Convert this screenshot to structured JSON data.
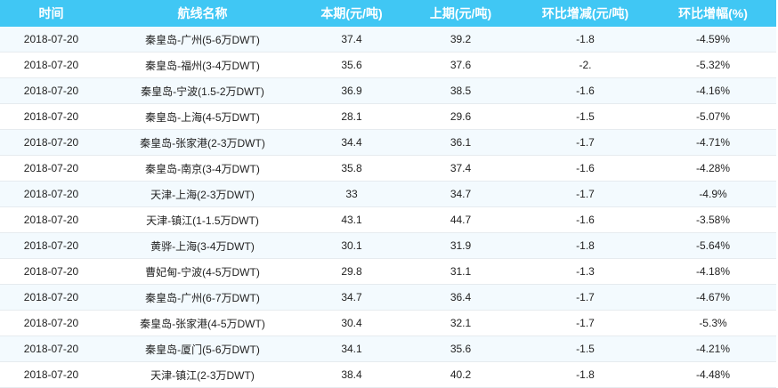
{
  "headers": [
    "时间",
    "航线名称",
    "本期(元/吨)",
    "上期(元/吨)",
    "环比增减(元/吨)",
    "环比增幅(%)"
  ],
  "colors": {
    "header_bg": "#40c7f4",
    "row_alt_bg": "#f3fafe"
  },
  "rows": [
    [
      "2018-07-20",
      "秦皇岛-广州(5-6万DWT)",
      "37.4",
      "39.2",
      "-1.8",
      "-4.59%"
    ],
    [
      "2018-07-20",
      "秦皇岛-福州(3-4万DWT)",
      "35.6",
      "37.6",
      "-2.",
      "-5.32%"
    ],
    [
      "2018-07-20",
      "秦皇岛-宁波(1.5-2万DWT)",
      "36.9",
      "38.5",
      "-1.6",
      "-4.16%"
    ],
    [
      "2018-07-20",
      "秦皇岛-上海(4-5万DWT)",
      "28.1",
      "29.6",
      "-1.5",
      "-5.07%"
    ],
    [
      "2018-07-20",
      "秦皇岛-张家港(2-3万DWT)",
      "34.4",
      "36.1",
      "-1.7",
      "-4.71%"
    ],
    [
      "2018-07-20",
      "秦皇岛-南京(3-4万DWT)",
      "35.8",
      "37.4",
      "-1.6",
      "-4.28%"
    ],
    [
      "2018-07-20",
      "天津-上海(2-3万DWT)",
      "33",
      "34.7",
      "-1.7",
      "-4.9%"
    ],
    [
      "2018-07-20",
      "天津-镇江(1-1.5万DWT)",
      "43.1",
      "44.7",
      "-1.6",
      "-3.58%"
    ],
    [
      "2018-07-20",
      "黄骅-上海(3-4万DWT)",
      "30.1",
      "31.9",
      "-1.8",
      "-5.64%"
    ],
    [
      "2018-07-20",
      "曹妃甸-宁波(4-5万DWT)",
      "29.8",
      "31.1",
      "-1.3",
      "-4.18%"
    ],
    [
      "2018-07-20",
      "秦皇岛-广州(6-7万DWT)",
      "34.7",
      "36.4",
      "-1.7",
      "-4.67%"
    ],
    [
      "2018-07-20",
      "秦皇岛-张家港(4-5万DWT)",
      "30.4",
      "32.1",
      "-1.7",
      "-5.3%"
    ],
    [
      "2018-07-20",
      "秦皇岛-厦门(5-6万DWT)",
      "34.1",
      "35.6",
      "-1.5",
      "-4.21%"
    ],
    [
      "2018-07-20",
      "天津-镇江(2-3万DWT)",
      "38.4",
      "40.2",
      "-1.8",
      "-4.48%"
    ]
  ]
}
